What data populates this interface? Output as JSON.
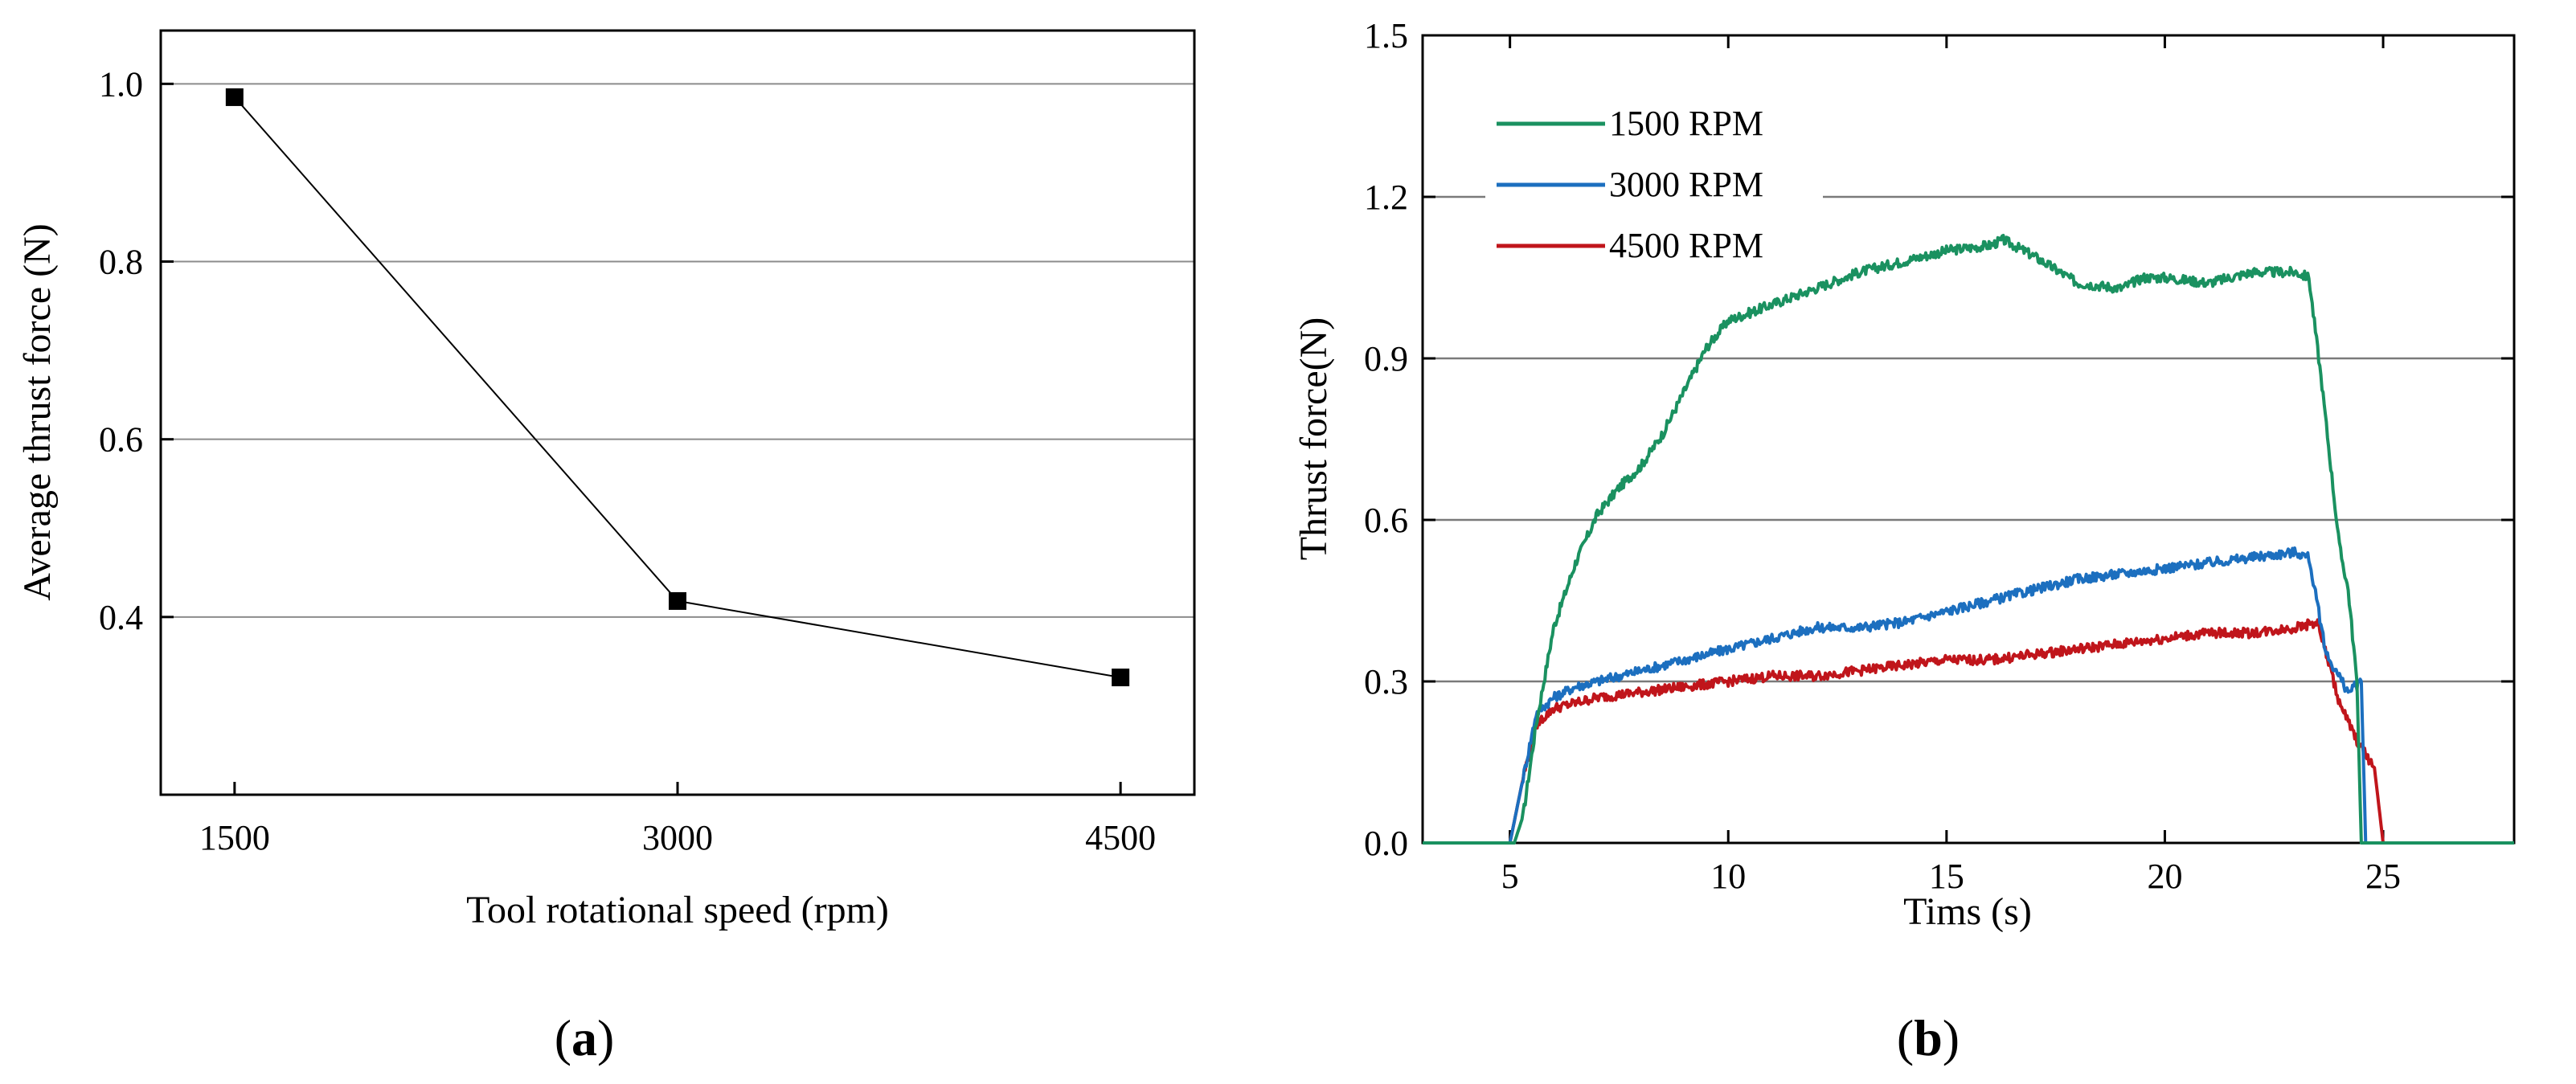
{
  "chart_data": [
    {
      "panel_label": "a",
      "type": "line",
      "title": "",
      "xlabel": "Tool rotational speed (rpm)",
      "ylabel": "Average thrust force (N)",
      "x": [
        1500,
        3000,
        4500
      ],
      "values": [
        0.985,
        0.418,
        0.332
      ],
      "xlim": [
        1250,
        4750
      ],
      "ylim": [
        0.2,
        1.06
      ],
      "xticks": [
        1500,
        3000,
        4500
      ],
      "xtick_labels": [
        "1500",
        "3000",
        "4500"
      ],
      "yticks": [
        0.4,
        0.6,
        0.8,
        1.0
      ],
      "ytick_labels": [
        "0.4",
        "0.6",
        "0.8",
        "1.0"
      ],
      "grid": "horizontal",
      "marker": "square",
      "color": "#000000"
    },
    {
      "panel_label": "b",
      "type": "line",
      "title": "",
      "xlabel": "Tims (s)",
      "ylabel": "Thrust force(N)",
      "xlim": [
        3,
        28
      ],
      "ylim": [
        0,
        1.5
      ],
      "xticks": [
        5,
        10,
        15,
        20,
        25
      ],
      "xtick_labels": [
        "5",
        "10",
        "15",
        "20",
        "25"
      ],
      "yticks": [
        0,
        0.3,
        0.6,
        0.9,
        1.2,
        1.5
      ],
      "ytick_labels": [
        "0.0",
        "0.3",
        "0.6",
        "0.9",
        "1.2",
        "1.5"
      ],
      "grid": "horizontal",
      "legend_position": "top-left",
      "series": [
        {
          "name": "1500 RPM",
          "color": "#1a9160",
          "x": [
            3,
            5.1,
            5.3,
            5.6,
            6,
            6.5,
            7,
            7.5,
            8,
            8.5,
            9,
            9.5,
            10,
            11,
            12,
            13,
            14,
            15,
            16,
            16.3,
            17,
            18,
            19,
            19.5,
            20,
            21,
            22,
            23,
            23.3,
            23.6,
            24,
            24.2,
            24.4,
            24.5,
            28
          ],
          "y": [
            0,
            0,
            0.05,
            0.22,
            0.4,
            0.52,
            0.61,
            0.66,
            0.7,
            0.76,
            0.84,
            0.92,
            0.97,
            1.0,
            1.03,
            1.06,
            1.08,
            1.1,
            1.11,
            1.12,
            1.09,
            1.04,
            1.03,
            1.05,
            1.05,
            1.04,
            1.06,
            1.06,
            1.05,
            0.85,
            0.55,
            0.47,
            0.3,
            0,
            0
          ]
        },
        {
          "name": "3000 RPM",
          "color": "#1c6fbf",
          "x": [
            3,
            5.0,
            5.3,
            5.6,
            6,
            6.5,
            7,
            8,
            9,
            10,
            11,
            12,
            13,
            14,
            15,
            16,
            17,
            18,
            19,
            20,
            21,
            22,
            23,
            23.3,
            23.7,
            24.2,
            24.5,
            24.6,
            28
          ],
          "y": [
            0,
            0,
            0.12,
            0.24,
            0.27,
            0.29,
            0.3,
            0.32,
            0.34,
            0.36,
            0.38,
            0.4,
            0.4,
            0.41,
            0.43,
            0.45,
            0.47,
            0.49,
            0.5,
            0.51,
            0.52,
            0.53,
            0.54,
            0.53,
            0.35,
            0.28,
            0.3,
            0,
            0
          ]
        },
        {
          "name": "4500 RPM",
          "color": "#c0151b",
          "x": [
            3,
            5.0,
            5.3,
            5.6,
            6,
            6.5,
            7,
            8,
            9,
            10,
            11,
            12,
            13,
            14,
            15,
            16,
            17,
            18,
            19,
            20,
            21,
            22,
            23,
            23.5,
            24,
            24.4,
            24.8,
            25.0,
            28
          ],
          "y": [
            0,
            0,
            0.12,
            0.22,
            0.25,
            0.26,
            0.27,
            0.28,
            0.29,
            0.3,
            0.31,
            0.31,
            0.32,
            0.33,
            0.34,
            0.34,
            0.35,
            0.36,
            0.37,
            0.38,
            0.39,
            0.39,
            0.4,
            0.41,
            0.26,
            0.19,
            0.14,
            0,
            0
          ]
        }
      ]
    }
  ]
}
